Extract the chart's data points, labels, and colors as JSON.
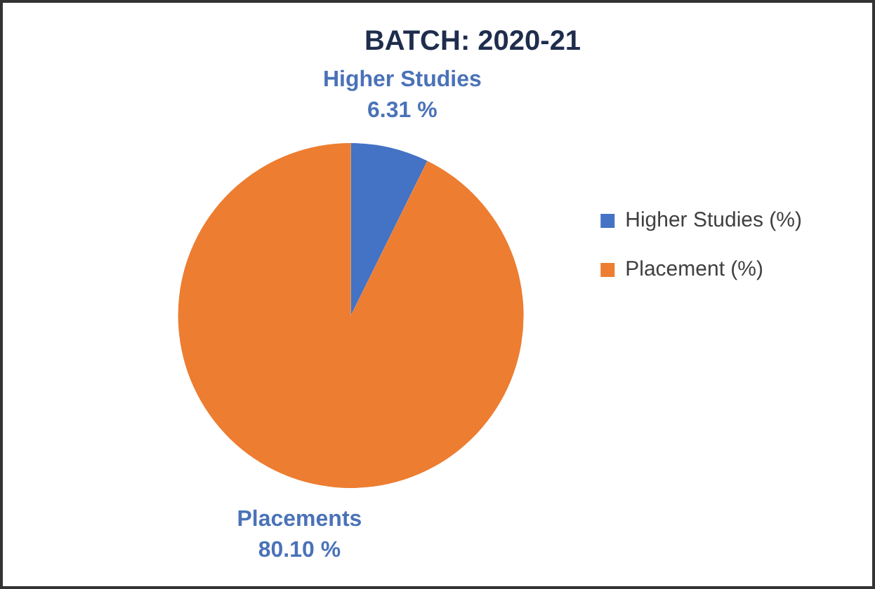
{
  "chart_data": {
    "type": "pie",
    "title": "BATCH: 2020-21",
    "categories": [
      "Higher Studies (%)",
      "Placement (%)"
    ],
    "values": [
      6.31,
      80.1
    ],
    "colors": [
      "#4472c4",
      "#ed7d31"
    ],
    "value_labels": [
      "6.31 %",
      "80.10 %"
    ],
    "annotations": [
      {
        "text": "Higher Studies",
        "x": "Higher Studies (%)"
      },
      {
        "text": "Placements",
        "x": "Placement (%)"
      }
    ],
    "legend": "right"
  }
}
